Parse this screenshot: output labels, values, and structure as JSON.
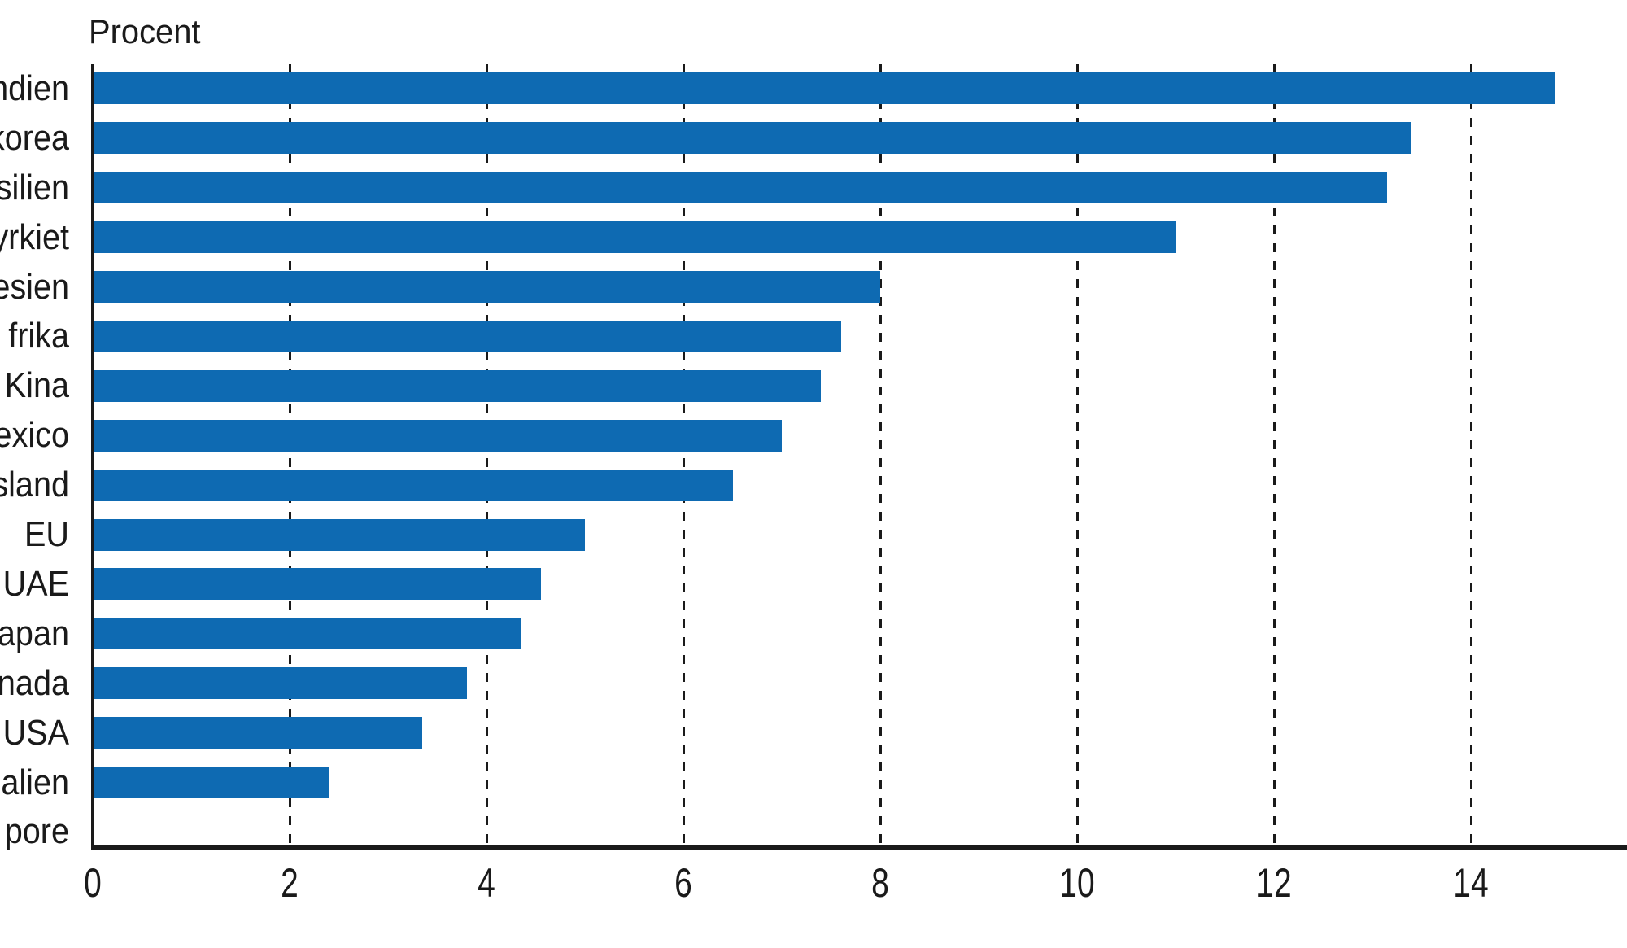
{
  "chart_data": {
    "type": "bar",
    "orientation": "horizontal",
    "title": "Procent",
    "categories": [
      "ndien",
      "korea",
      "silien",
      "yrkiet",
      "esien",
      "frika",
      "Kina",
      "exico",
      "sland",
      "EU",
      "UAE",
      "apan",
      "nada",
      "USA",
      "alien",
      "pore"
    ],
    "values": [
      14.85,
      13.4,
      13.15,
      11.0,
      8.0,
      7.6,
      7.4,
      7.0,
      6.5,
      5.0,
      4.55,
      4.35,
      3.8,
      3.35,
      2.4,
      0
    ],
    "xlabel": "",
    "ylabel": "Procent",
    "x_ticks": [
      0,
      2,
      4,
      6,
      8,
      10,
      12,
      14
    ],
    "xlim": [
      0,
      15.6
    ],
    "grid": "vertical-dashed",
    "legend": "none",
    "labels_clipped_at_left_edge": true,
    "bar_color": "#0e6ab2",
    "axis_color": "#1a1a1a",
    "text_color": "#1a1a1a",
    "background_color": "#ffffff"
  }
}
